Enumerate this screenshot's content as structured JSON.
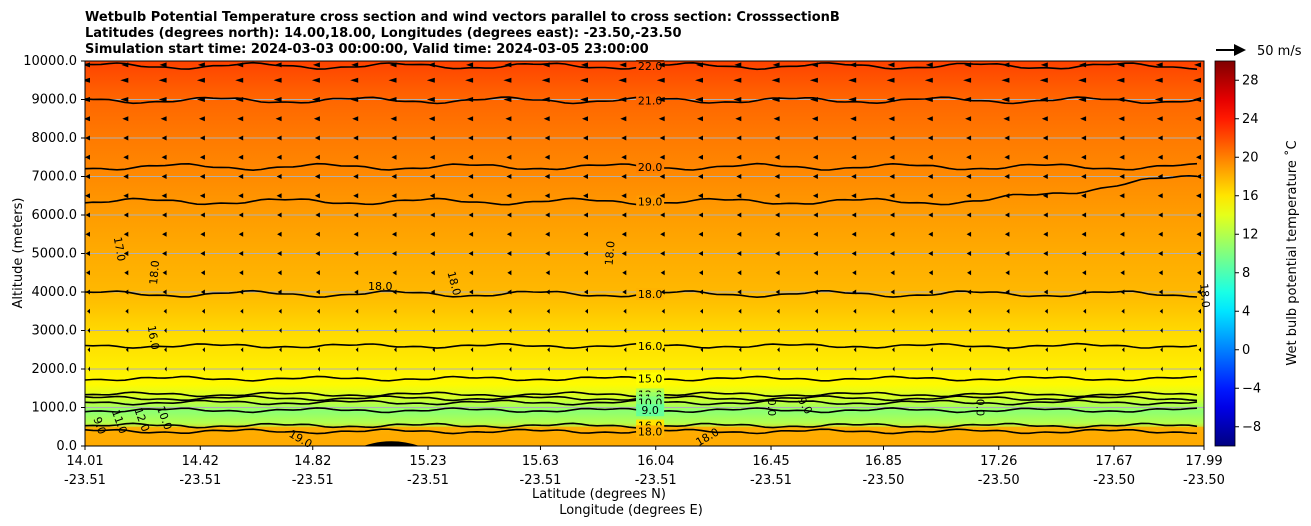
{
  "chart_data": {
    "type": "contour",
    "title_lines": [
      "Wetbulb Potential Temperature cross section and wind vectors parallel to cross section: CrosssectionB",
      "Latitudes (degrees north): 14.00,18.00, Longitudes (degrees east): -23.50,-23.50",
      "Simulation start time: 2024-03-03 00:00:00, Valid time: 2024-03-05 23:00:00"
    ],
    "ylabel": "Altitude (meters)",
    "xlabel": "Latitude (degrees N)",
    "xlabel2": "Longitude (degrees E)",
    "ylim": [
      0,
      10000
    ],
    "yticks": [
      0,
      1000,
      2000,
      3000,
      4000,
      5000,
      6000,
      7000,
      8000,
      9000,
      10000
    ],
    "ytick_labels": [
      "0.0",
      "1000.0",
      "2000.0",
      "3000.0",
      "4000.0",
      "5000.0",
      "6000.0",
      "7000.0",
      "8000.0",
      "9000.0",
      "10000.0"
    ],
    "xlim": [
      14.01,
      17.99
    ],
    "xticks": [
      {
        "lat": "14.01",
        "lon": "-23.51"
      },
      {
        "lat": "14.42",
        "lon": "-23.51"
      },
      {
        "lat": "14.82",
        "lon": "-23.51"
      },
      {
        "lat": "15.23",
        "lon": "-23.51"
      },
      {
        "lat": "15.63",
        "lon": "-23.51"
      },
      {
        "lat": "16.04",
        "lon": "-23.51"
      },
      {
        "lat": "16.45",
        "lon": "-23.51"
      },
      {
        "lat": "16.85",
        "lon": "-23.50"
      },
      {
        "lat": "17.26",
        "lon": "-23.50"
      },
      {
        "lat": "17.67",
        "lon": "-23.50"
      },
      {
        "lat": "17.99",
        "lon": "-23.50"
      }
    ],
    "colorbar": {
      "label": "Wet bulb potential temperature $^\\circ$C",
      "label_text": "Wet bulb potential temperature ˚C",
      "range": [
        -10,
        30
      ],
      "ticks": [
        28,
        24,
        20,
        16,
        12,
        8,
        4,
        0,
        -4,
        -8
      ],
      "tick_labels": [
        "28",
        "24",
        "20",
        "16",
        "12",
        "8",
        "4",
        "0",
        "−4",
        "−8"
      ],
      "colormap": "jet"
    },
    "quiver_key": {
      "label": "50 m/s",
      "speed": 50
    },
    "temperature_profile": [
      {
        "altitude": 0,
        "value": 18.5
      },
      {
        "altitude": 300,
        "value": 18.3
      },
      {
        "altitude": 600,
        "value": 12
      },
      {
        "altitude": 900,
        "value": 10.5
      },
      {
        "altitude": 1200,
        "value": 13
      },
      {
        "altitude": 1600,
        "value": 15.2
      },
      {
        "altitude": 2000,
        "value": 15.6
      },
      {
        "altitude": 2400,
        "value": 16
      },
      {
        "altitude": 3000,
        "value": 16.5
      },
      {
        "altitude": 3500,
        "value": 17.2
      },
      {
        "altitude": 4000,
        "value": 17.8
      },
      {
        "altitude": 5000,
        "value": 18.3
      },
      {
        "altitude": 6000,
        "value": 18.9
      },
      {
        "altitude": 7000,
        "value": 19.6
      },
      {
        "altitude": 8000,
        "value": 20.2
      },
      {
        "altitude": 9000,
        "value": 21
      },
      {
        "altitude": 10000,
        "value": 22.4
      }
    ],
    "contour_lines": [
      {
        "value": 22.0,
        "label": "22.0",
        "altitude": 9870,
        "label_lat": 16.02
      },
      {
        "value": 21.0,
        "label": "21.0",
        "altitude": 8980,
        "label_lat": 16.02
      },
      {
        "value": 20.0,
        "label": "20.0",
        "altitude": 7250,
        "label_lat": 16.02
      },
      {
        "value": 19.0,
        "label": "19.0",
        "altitude": 6350,
        "label_lat": 16.02
      },
      {
        "value": 18.0,
        "label": "18.0",
        "altitude": 3950,
        "label_lat": 16.02
      },
      {
        "value": 16.0,
        "label": "16.0",
        "altitude": 2600,
        "label_lat": 16.02
      },
      {
        "value": 15.0,
        "label": "15.0",
        "altitude": 1750,
        "label_lat": 16.02
      },
      {
        "value": 12.0,
        "label": "12.0",
        "altitude": 1340,
        "label_lat": 16.02
      },
      {
        "value": 11.0,
        "label": "11.0",
        "altitude": 1240,
        "label_lat": 16.02
      },
      {
        "value": 10.0,
        "label": "10.0",
        "altitude": 1130,
        "label_lat": 16.02
      },
      {
        "value": 9.0,
        "label": "9.0",
        "altitude": 930,
        "label_lat": 16.02
      },
      {
        "value": 16.0,
        "label": "16.0",
        "altitude": 530,
        "label_lat": 16.02
      },
      {
        "value": 18.0,
        "label": "18.0",
        "altitude": 380,
        "label_lat": 16.02
      }
    ],
    "extra_labels": [
      {
        "text": "17.0",
        "lat": 14.12,
        "altitude": 5100,
        "rotation": 80
      },
      {
        "text": "18.0",
        "lat": 14.27,
        "altitude": 4500,
        "rotation": -85
      },
      {
        "text": "16.0",
        "lat": 14.24,
        "altitude": 2800,
        "rotation": 80
      },
      {
        "text": "18.0",
        "lat": 15.06,
        "altitude": 4050,
        "rotation": 0
      },
      {
        "text": "18.0",
        "lat": 15.31,
        "altitude": 4200,
        "rotation": 75
      },
      {
        "text": "18.0",
        "lat": 15.89,
        "altitude": 5000,
        "rotation": -85
      },
      {
        "text": "18.0",
        "lat": 17.98,
        "altitude": 3900,
        "rotation": 85
      },
      {
        "text": "19.0",
        "lat": 14.77,
        "altitude": 100,
        "rotation": 30
      },
      {
        "text": "18.0",
        "lat": 16.23,
        "altitude": 150,
        "rotation": -30
      },
      {
        "text": "12.0",
        "lat": 14.2,
        "altitude": 650,
        "rotation": 70
      },
      {
        "text": "11.0",
        "lat": 14.12,
        "altitude": 600,
        "rotation": 70
      },
      {
        "text": "9.0",
        "lat": 14.05,
        "altitude": 500,
        "rotation": 70
      },
      {
        "text": "10.0",
        "lat": 14.28,
        "altitude": 700,
        "rotation": 70
      },
      {
        "text": "0.0",
        "lat": 16.44,
        "altitude": 1000,
        "rotation": 90
      },
      {
        "text": "9.0",
        "lat": 16.56,
        "altitude": 1000,
        "rotation": 60
      },
      {
        "text": "0.0",
        "lat": 17.18,
        "altitude": 1000,
        "rotation": 90
      }
    ],
    "wind_vectors": {
      "direction": "westward (negative, toward 14N)",
      "max_speed_upper_levels": 8,
      "levels": [
        {
          "altitude": 9900,
          "speed": 6
        },
        {
          "altitude": 9500,
          "speed": 7
        },
        {
          "altitude": 9000,
          "speed": 7
        },
        {
          "altitude": 8500,
          "speed": 5
        },
        {
          "altitude": 8000,
          "speed": 4
        },
        {
          "altitude": 7500,
          "speed": 4
        },
        {
          "altitude": 7000,
          "speed": 4
        },
        {
          "altitude": 6500,
          "speed": 4
        },
        {
          "altitude": 6000,
          "speed": 3.5
        },
        {
          "altitude": 5500,
          "speed": 3.5
        },
        {
          "altitude": 5000,
          "speed": 3.5
        },
        {
          "altitude": 4500,
          "speed": 3
        },
        {
          "altitude": 4000,
          "speed": 3
        },
        {
          "altitude": 3500,
          "speed": 2
        },
        {
          "altitude": 3000,
          "speed": 1.5
        },
        {
          "altitude": 2500,
          "speed": 1.5
        },
        {
          "altitude": 2000,
          "speed": 1
        }
      ]
    }
  }
}
